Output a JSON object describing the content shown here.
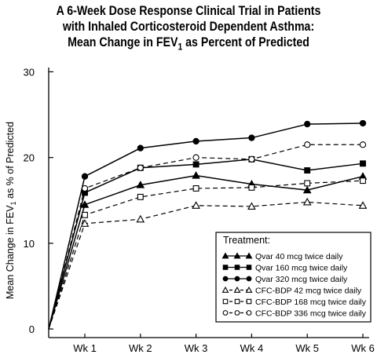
{
  "chart_data": {
    "type": "line",
    "title_lines": [
      "A 6-Week Dose Response Clinical Trial in Patients",
      "with Inhaled Corticosteroid Dependent Asthma:",
      "Mean Change in FEV"
    ],
    "title_sub": "1",
    "title_tail": " as Percent of Predicted",
    "ylabel_pre": "Mean Change in FEV",
    "ylabel_sub": "1",
    "ylabel_post": " as % of Predicted",
    "xlabel": "",
    "categories": [
      "Wk 1",
      "Wk 2",
      "Wk 3",
      "Wk 4",
      "Wk 5",
      "Wk 6"
    ],
    "yticks": [
      0,
      10,
      20,
      30
    ],
    "ylim": [
      -1,
      30.5
    ],
    "grid": false,
    "legend_position": "bottom-right",
    "legend_title": "Treatment:",
    "series": [
      {
        "name": "Qvar 40 mcg twice daily",
        "marker": "triangle",
        "filled": true,
        "dashed": false,
        "values": [
          14.5,
          16.8,
          17.9,
          16.9,
          16.2,
          17.8
        ]
      },
      {
        "name": "Qvar 160 mcg twice daily",
        "marker": "square",
        "filled": true,
        "dashed": false,
        "values": [
          15.9,
          18.8,
          19.2,
          19.8,
          18.5,
          19.3
        ]
      },
      {
        "name": "Qvar 320 mcg twice daily",
        "marker": "circle",
        "filled": true,
        "dashed": false,
        "values": [
          17.8,
          21.1,
          21.9,
          22.3,
          23.9,
          24.0
        ]
      },
      {
        "name": "CFC-BDP 42 mcg twice daily",
        "marker": "triangle",
        "filled": false,
        "dashed": true,
        "values": [
          12.3,
          12.8,
          14.4,
          14.3,
          14.8,
          14.4
        ]
      },
      {
        "name": "CFC-BDP 168 mcg twice daily",
        "marker": "square",
        "filled": false,
        "dashed": true,
        "values": [
          13.3,
          15.4,
          16.4,
          16.5,
          17.0,
          17.3
        ]
      },
      {
        "name": "CFC-BDP 336 mcg twice daily",
        "marker": "circle",
        "filled": false,
        "dashed": true,
        "values": [
          16.4,
          18.8,
          20.0,
          19.8,
          21.5,
          21.5
        ]
      }
    ],
    "origin": {
      "x": 0,
      "y": 0
    }
  }
}
